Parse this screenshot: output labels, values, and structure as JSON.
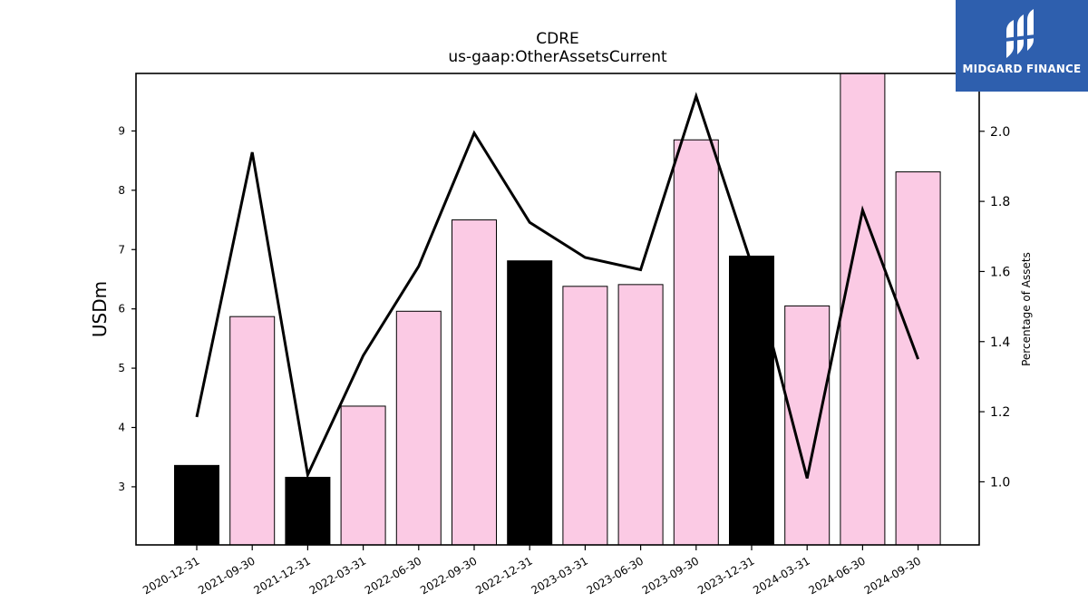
{
  "brand": {
    "name": "MIDGARD FINANCE",
    "color": "#2e5fae"
  },
  "chart_data": {
    "type": "bar",
    "title": "CDRE",
    "subtitle": "us-gaap:OtherAssetsCurrent",
    "ylabel": "USDm",
    "y2label": "Percentage of Assets",
    "ylim": [
      2.02,
      9.97
    ],
    "y2lim": [
      0.82,
      2.165
    ],
    "yticks": [
      "3",
      "4",
      "5",
      "6",
      "7",
      "8",
      "9"
    ],
    "y2ticks": [
      "1.0",
      "1.2",
      "1.4",
      "1.6",
      "1.8",
      "2.0"
    ],
    "categories": [
      "2020-12-31",
      "2021-09-30",
      "2021-12-31",
      "2022-03-31",
      "2022-06-30",
      "2022-09-30",
      "2022-12-31",
      "2023-03-31",
      "2023-06-30",
      "2023-09-30",
      "2023-12-31",
      "2024-03-31",
      "2024-06-30",
      "2024-09-30"
    ],
    "bar_values": [
      3.36,
      5.87,
      3.16,
      4.36,
      5.96,
      7.5,
      6.81,
      6.38,
      6.41,
      8.85,
      6.89,
      6.05,
      10.0,
      8.31
    ],
    "bar_colors": [
      "#000000",
      "#fbcae4",
      "#000000",
      "#fbcae4",
      "#fbcae4",
      "#fbcae4",
      "#000000",
      "#fbcae4",
      "#fbcae4",
      "#fbcae4",
      "#000000",
      "#fbcae4",
      "#fbcae4",
      "#fbcae4"
    ],
    "line_series": {
      "axis": "right",
      "values": [
        1.185,
        1.94,
        1.02,
        1.36,
        1.615,
        1.995,
        1.74,
        1.64,
        1.605,
        2.1,
        1.62,
        1.01,
        1.775,
        1.35
      ],
      "color": "#000000"
    },
    "grid": false
  }
}
